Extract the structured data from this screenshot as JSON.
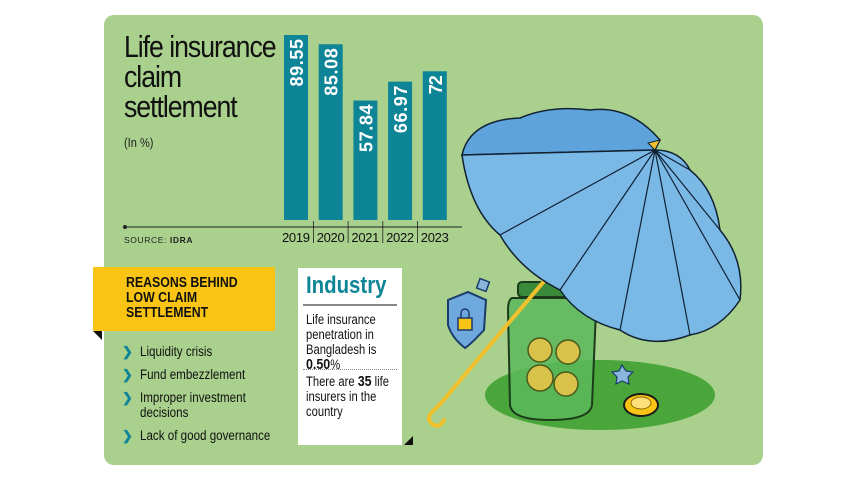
{
  "chart_data": {
    "type": "bar",
    "title": "Life insurance claim settlement",
    "subtitle": "(In %)",
    "categories": [
      "2019",
      "2020",
      "2021",
      "2022",
      "2023"
    ],
    "values": [
      89.55,
      85.08,
      57.84,
      66.97,
      72
    ],
    "data_labels": [
      "89.55",
      "85.08",
      "57.84",
      "66.97",
      "72"
    ],
    "ylim": [
      0,
      100
    ],
    "grid": false,
    "bar_color": "#0e8596",
    "source_label": "SOURCE:",
    "source": "IDRA"
  },
  "reasons": {
    "title": "REASONS BEHIND\nLOW CLAIM\nSETTLEMENT",
    "items": [
      "Liquidity crisis",
      "Fund embezzlement",
      "Improper investment decisions",
      "Lack of good governance"
    ]
  },
  "industry": {
    "title": "Industry",
    "penetration_text": "Life insurance penetration in Bangladesh is",
    "penetration_value": "0.50",
    "penetration_unit": "%",
    "insurers_prefix": "There are",
    "insurers_count": "35",
    "insurers_suffix": "life insurers in the country"
  },
  "colors": {
    "background": "#a9d08c",
    "accent": "#0e8596",
    "highlight": "#f9c414"
  },
  "illustration": {
    "icons": [
      "umbrella-icon",
      "money-jar-icon",
      "coin-icon",
      "shield-lock-icon"
    ]
  }
}
